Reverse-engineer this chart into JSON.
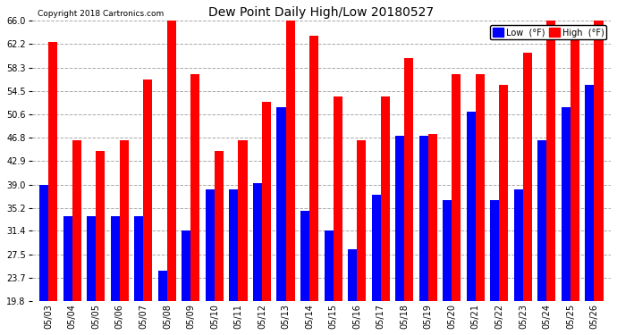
{
  "title": "Dew Point Daily High/Low 20180527",
  "copyright": "Copyright 2018 Cartronics.com",
  "dates": [
    "05/03",
    "05/04",
    "05/05",
    "05/06",
    "05/07",
    "05/08",
    "05/09",
    "05/10",
    "05/11",
    "05/12",
    "05/13",
    "05/14",
    "05/15",
    "05/16",
    "05/17",
    "05/18",
    "05/19",
    "05/20",
    "05/21",
    "05/22",
    "05/23",
    "05/24",
    "05/25",
    "05/26"
  ],
  "low_values": [
    39.0,
    33.8,
    33.8,
    33.8,
    33.8,
    24.8,
    31.4,
    38.3,
    38.3,
    39.2,
    51.8,
    34.7,
    31.4,
    28.4,
    37.4,
    47.0,
    47.0,
    36.5,
    51.1,
    36.5,
    38.3,
    46.4,
    51.8,
    55.4
  ],
  "high_values": [
    62.6,
    46.4,
    44.6,
    46.4,
    56.3,
    66.2,
    57.2,
    44.6,
    46.4,
    52.7,
    66.2,
    63.5,
    53.6,
    46.4,
    53.6,
    59.9,
    47.3,
    57.2,
    57.2,
    55.4,
    60.8,
    66.2,
    63.5,
    66.2
  ],
  "background_color": "#ffffff",
  "low_color": "#0000ff",
  "high_color": "#ff0000",
  "grid_color": "#aaaaaa",
  "ylim_min": 19.8,
  "ylim_max": 66.0,
  "yticks": [
    19.8,
    23.7,
    27.5,
    31.4,
    35.2,
    39.0,
    42.9,
    46.8,
    50.6,
    54.5,
    58.3,
    62.2,
    66.0
  ],
  "legend_low_label": "Low  (°F)",
  "legend_high_label": "High  (°F)",
  "bar_width": 0.38,
  "figwidth": 6.9,
  "figheight": 3.75,
  "dpi": 100
}
